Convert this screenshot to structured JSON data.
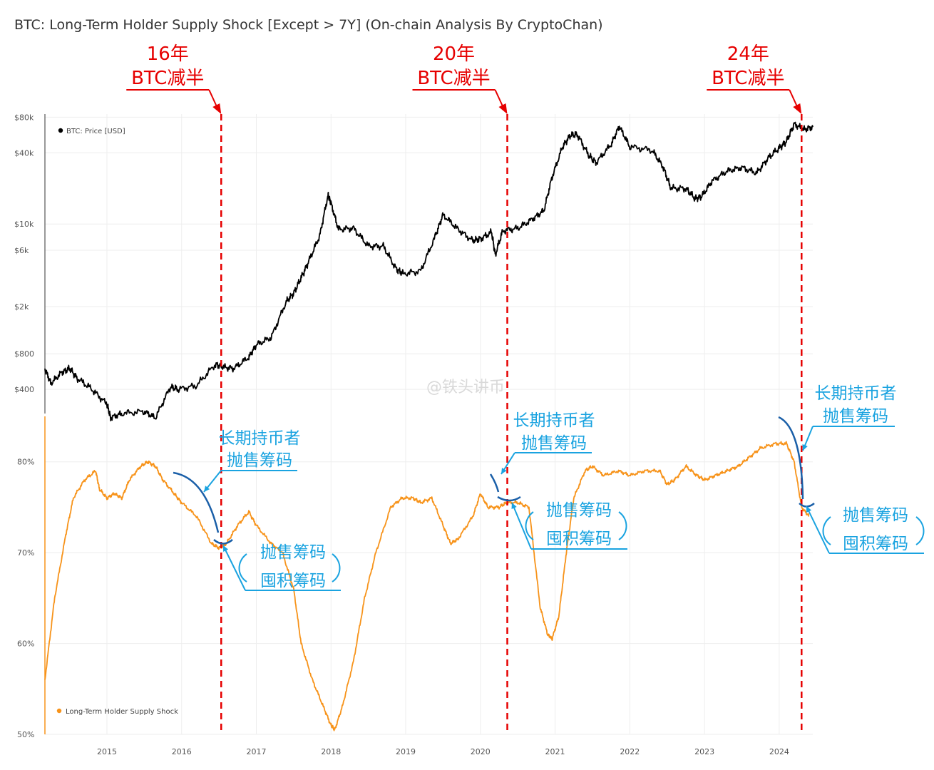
{
  "title": "BTC: Long-Term Holder Supply Shock [Except > 7Y] (On-chain Analysis By CryptoChan)",
  "watermark": "@铁头讲币",
  "colors": {
    "price": "#000000",
    "supply": "#f7931a",
    "halving": "#e60000",
    "annotation": "#1aa3e0",
    "arrow_dark": "#1a5fa8",
    "grid": "#eeeeee"
  },
  "chart_data": [
    {
      "type": "line",
      "y_scale": "log",
      "ylim": [
        250,
        85000
      ],
      "xlim": [
        2014.17,
        2024.45
      ],
      "grid": true,
      "legend_position": "top-left",
      "y_ticks": [
        {
          "value": 80000,
          "label": "$80k"
        },
        {
          "value": 40000,
          "label": "$40k"
        },
        {
          "value": 10000,
          "label": "$10k"
        },
        {
          "value": 6000,
          "label": "$6k"
        },
        {
          "value": 2000,
          "label": "$2k"
        },
        {
          "value": 800,
          "label": "$800"
        },
        {
          "value": 400,
          "label": "$400"
        }
      ],
      "series": [
        {
          "name": "BTC: Price [USD]",
          "x": [
            2014.17,
            2014.25,
            2014.4,
            2014.5,
            2014.6,
            2014.8,
            2015.0,
            2015.05,
            2015.2,
            2015.5,
            2015.65,
            2015.85,
            2015.95,
            2016.2,
            2016.45,
            2016.55,
            2016.7,
            2016.9,
            2017.0,
            2017.2,
            2017.4,
            2017.5,
            2017.6,
            2017.7,
            2017.85,
            2017.96,
            2018.0,
            2018.1,
            2018.3,
            2018.5,
            2018.7,
            2018.87,
            2018.96,
            2019.2,
            2019.4,
            2019.5,
            2019.7,
            2019.9,
            2020.0,
            2020.15,
            2020.2,
            2020.3,
            2020.5,
            2020.7,
            2020.85,
            2020.96,
            2021.1,
            2021.2,
            2021.3,
            2021.45,
            2021.55,
            2021.75,
            2021.86,
            2022.0,
            2022.3,
            2022.45,
            2022.55,
            2022.75,
            2022.87,
            2022.96,
            2023.1,
            2023.3,
            2023.5,
            2023.7,
            2023.85,
            2024.0,
            2024.1,
            2024.2,
            2024.33,
            2024.45
          ],
          "values": [
            600,
            450,
            560,
            600,
            500,
            400,
            300,
            230,
            250,
            260,
            230,
            420,
            400,
            430,
            650,
            620,
            600,
            750,
            950,
            1100,
            2200,
            2600,
            3500,
            4800,
            8000,
            17500,
            15000,
            9000,
            9200,
            6500,
            6500,
            4200,
            3800,
            4000,
            8000,
            12000,
            9000,
            7200,
            7500,
            8500,
            5500,
            8800,
            9200,
            11000,
            13000,
            25000,
            45000,
            56000,
            57000,
            38000,
            33000,
            47000,
            67000,
            45000,
            42000,
            30000,
            20000,
            20000,
            16500,
            17000,
            23000,
            28000,
            30000,
            27000,
            36000,
            44000,
            50000,
            70000,
            63000,
            66000
          ]
        }
      ]
    },
    {
      "type": "line",
      "ylim": [
        50,
        85
      ],
      "xlim": [
        2014.17,
        2024.45
      ],
      "grid": true,
      "legend_position": "bottom-left",
      "y_ticks": [
        {
          "value": 80,
          "label": "80%"
        },
        {
          "value": 70,
          "label": "70%"
        },
        {
          "value": 60,
          "label": "60%"
        },
        {
          "value": 50,
          "label": "50%"
        }
      ],
      "x_ticks": [
        {
          "value": 2015,
          "label": "2015"
        },
        {
          "value": 2016,
          "label": "2016"
        },
        {
          "value": 2017,
          "label": "2017"
        },
        {
          "value": 2018,
          "label": "2018"
        },
        {
          "value": 2019,
          "label": "2019"
        },
        {
          "value": 2020,
          "label": "2020"
        },
        {
          "value": 2021,
          "label": "2021"
        },
        {
          "value": 2022,
          "label": "2022"
        },
        {
          "value": 2023,
          "label": "2023"
        },
        {
          "value": 2024,
          "label": "2024"
        }
      ],
      "series": [
        {
          "name": "Long-Term Holder Supply Shock",
          "x": [
            2014.17,
            2014.3,
            2014.45,
            2014.55,
            2014.7,
            2014.85,
            2014.9,
            2015.0,
            2015.1,
            2015.2,
            2015.3,
            2015.45,
            2015.55,
            2015.65,
            2015.75,
            2015.9,
            2016.0,
            2016.2,
            2016.4,
            2016.5,
            2016.6,
            2016.75,
            2016.9,
            2017.0,
            2017.2,
            2017.35,
            2017.5,
            2017.6,
            2017.75,
            2017.9,
            2018.0,
            2018.05,
            2018.15,
            2018.3,
            2018.45,
            2018.6,
            2018.8,
            2018.95,
            2019.1,
            2019.2,
            2019.35,
            2019.5,
            2019.6,
            2019.7,
            2019.9,
            2020.0,
            2020.1,
            2020.25,
            2020.35,
            2020.5,
            2020.65,
            2020.8,
            2020.9,
            2020.96,
            2021.05,
            2021.15,
            2021.25,
            2021.4,
            2021.5,
            2021.65,
            2021.85,
            2022.0,
            2022.2,
            2022.4,
            2022.5,
            2022.6,
            2022.75,
            2022.9,
            2023.0,
            2023.15,
            2023.3,
            2023.45,
            2023.6,
            2023.75,
            2023.95,
            2024.1,
            2024.2,
            2024.3,
            2024.4
          ],
          "values": [
            56,
            65,
            72,
            76,
            78,
            79,
            77,
            76,
            76.5,
            76,
            78,
            79.5,
            80,
            79.5,
            78,
            76.5,
            75.5,
            74,
            71,
            70.5,
            71,
            73,
            74.5,
            73,
            71,
            70,
            66,
            60,
            56,
            53,
            51,
            50.5,
            53,
            58,
            65,
            70,
            75,
            76,
            76,
            75.5,
            76,
            73,
            71,
            71.5,
            74,
            76.5,
            75,
            75,
            75.5,
            75.5,
            75,
            64,
            61,
            60.5,
            63,
            70,
            76,
            79,
            79.5,
            78.5,
            79,
            78.5,
            79,
            79,
            77.5,
            78,
            79.5,
            78.5,
            78,
            78.5,
            79,
            79.5,
            80.5,
            81.5,
            82,
            82,
            80,
            75,
            74
          ]
        }
      ]
    }
  ],
  "halvings": [
    {
      "x": 2016.53,
      "line1": "16年",
      "line2": "BTC减半"
    },
    {
      "x": 2020.36,
      "line1": "20年",
      "line2": "BTC减半"
    },
    {
      "x": 2024.3,
      "line1": "24年",
      "line2": "BTC减半"
    }
  ],
  "annotations": {
    "selling_label": [
      "长期持币者",
      "抛售筹码"
    ],
    "switch_label": [
      "抛售筹码",
      "囤积筹码"
    ]
  }
}
